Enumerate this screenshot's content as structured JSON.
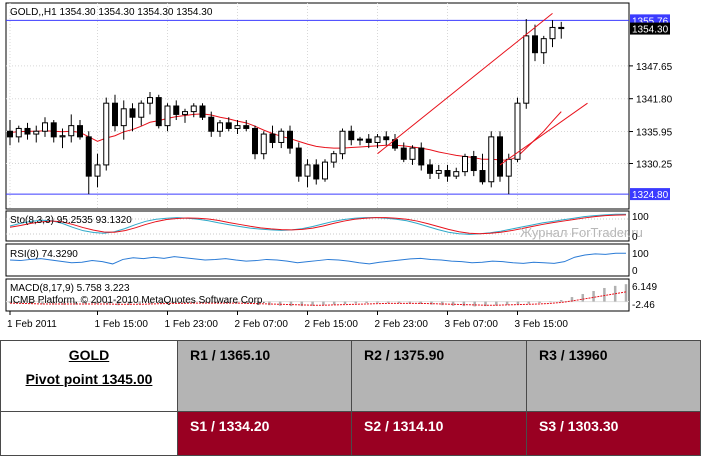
{
  "chart_data": {
    "type": "candlestick",
    "symbol_header": "GOLD,,H1  1354.30 1354.30 1354.30 1354.30",
    "ylim": [
      1322.5,
      1358.5
    ],
    "y_ticks": [
      "1347.65",
      "1341.80",
      "1335.95",
      "1330.25"
    ],
    "price_labels": {
      "upper": "1355.76",
      "last": "1354.30",
      "lower": "1324.80"
    },
    "x_ticks": [
      "1 Feb 2011",
      "1 Feb 15:00",
      "1 Feb 23:00",
      "2 Feb 07:00",
      "2 Feb 15:00",
      "2 Feb 23:00",
      "3 Feb 07:00",
      "3 Feb 15:00"
    ],
    "x_tick_index": [
      0,
      10,
      18,
      26,
      34,
      42,
      50,
      58
    ],
    "candles": [
      {
        "o": 1336.0,
        "h": 1338.0,
        "l": 1333.5,
        "c": 1335.0
      },
      {
        "o": 1335.0,
        "h": 1337.0,
        "l": 1334.0,
        "c": 1336.5
      },
      {
        "o": 1336.5,
        "h": 1337.5,
        "l": 1334.5,
        "c": 1335.5
      },
      {
        "o": 1335.5,
        "h": 1337.0,
        "l": 1334.0,
        "c": 1336.0
      },
      {
        "o": 1336.0,
        "h": 1338.5,
        "l": 1335.0,
        "c": 1337.5
      },
      {
        "o": 1337.5,
        "h": 1338.0,
        "l": 1334.0,
        "c": 1335.0
      },
      {
        "o": 1335.0,
        "h": 1336.5,
        "l": 1333.0,
        "c": 1335.2
      },
      {
        "o": 1335.2,
        "h": 1339.0,
        "l": 1334.0,
        "c": 1337.0
      },
      {
        "o": 1337.0,
        "h": 1338.0,
        "l": 1334.5,
        "c": 1335.0
      },
      {
        "o": 1335.0,
        "h": 1336.0,
        "l": 1324.8,
        "c": 1328.0
      },
      {
        "o": 1328.0,
        "h": 1332.0,
        "l": 1326.0,
        "c": 1330.0
      },
      {
        "o": 1330.0,
        "h": 1342.0,
        "l": 1329.0,
        "c": 1341.0
      },
      {
        "o": 1341.0,
        "h": 1342.5,
        "l": 1336.0,
        "c": 1337.0
      },
      {
        "o": 1337.0,
        "h": 1341.5,
        "l": 1334.5,
        "c": 1340.0
      },
      {
        "o": 1340.0,
        "h": 1341.0,
        "l": 1336.0,
        "c": 1338.5
      },
      {
        "o": 1338.5,
        "h": 1341.5,
        "l": 1337.0,
        "c": 1341.0
      },
      {
        "o": 1341.0,
        "h": 1343.0,
        "l": 1339.0,
        "c": 1342.0
      },
      {
        "o": 1342.0,
        "h": 1342.5,
        "l": 1336.5,
        "c": 1337.0
      },
      {
        "o": 1337.0,
        "h": 1341.0,
        "l": 1336.0,
        "c": 1340.5
      },
      {
        "o": 1340.5,
        "h": 1341.5,
        "l": 1338.0,
        "c": 1339.0
      },
      {
        "o": 1339.0,
        "h": 1340.0,
        "l": 1337.5,
        "c": 1339.5
      },
      {
        "o": 1339.5,
        "h": 1341.0,
        "l": 1338.5,
        "c": 1340.5
      },
      {
        "o": 1340.5,
        "h": 1341.0,
        "l": 1338.0,
        "c": 1338.5
      },
      {
        "o": 1338.5,
        "h": 1339.5,
        "l": 1335.0,
        "c": 1336.0
      },
      {
        "o": 1336.0,
        "h": 1338.0,
        "l": 1335.0,
        "c": 1337.5
      },
      {
        "o": 1337.5,
        "h": 1338.5,
        "l": 1336.0,
        "c": 1336.5
      },
      {
        "o": 1336.5,
        "h": 1338.0,
        "l": 1335.5,
        "c": 1337.0
      },
      {
        "o": 1337.0,
        "h": 1338.0,
        "l": 1336.0,
        "c": 1336.5
      },
      {
        "o": 1336.5,
        "h": 1337.0,
        "l": 1331.0,
        "c": 1332.0
      },
      {
        "o": 1332.0,
        "h": 1336.0,
        "l": 1331.0,
        "c": 1335.5
      },
      {
        "o": 1335.5,
        "h": 1337.0,
        "l": 1333.0,
        "c": 1334.0
      },
      {
        "o": 1334.0,
        "h": 1336.5,
        "l": 1333.0,
        "c": 1336.0
      },
      {
        "o": 1336.0,
        "h": 1337.0,
        "l": 1332.0,
        "c": 1333.0
      },
      {
        "o": 1333.0,
        "h": 1334.0,
        "l": 1327.0,
        "c": 1328.0
      },
      {
        "o": 1328.0,
        "h": 1331.0,
        "l": 1326.0,
        "c": 1330.0
      },
      {
        "o": 1330.0,
        "h": 1331.0,
        "l": 1326.5,
        "c": 1327.5
      },
      {
        "o": 1327.5,
        "h": 1331.0,
        "l": 1327.0,
        "c": 1330.5
      },
      {
        "o": 1330.5,
        "h": 1332.5,
        "l": 1329.5,
        "c": 1332.0
      },
      {
        "o": 1332.0,
        "h": 1336.5,
        "l": 1331.0,
        "c": 1336.0
      },
      {
        "o": 1336.0,
        "h": 1337.0,
        "l": 1333.5,
        "c": 1334.5
      },
      {
        "o": 1334.5,
        "h": 1335.0,
        "l": 1333.5,
        "c": 1334.6
      },
      {
        "o": 1334.6,
        "h": 1335.5,
        "l": 1333.0,
        "c": 1334.0
      },
      {
        "o": 1334.0,
        "h": 1335.5,
        "l": 1333.0,
        "c": 1335.0
      },
      {
        "o": 1335.0,
        "h": 1336.0,
        "l": 1333.5,
        "c": 1334.5
      },
      {
        "o": 1334.5,
        "h": 1335.5,
        "l": 1332.5,
        "c": 1333.0
      },
      {
        "o": 1333.0,
        "h": 1334.0,
        "l": 1330.5,
        "c": 1331.0
      },
      {
        "o": 1331.0,
        "h": 1333.5,
        "l": 1330.0,
        "c": 1333.0
      },
      {
        "o": 1333.0,
        "h": 1334.0,
        "l": 1329.0,
        "c": 1330.0
      },
      {
        "o": 1330.0,
        "h": 1331.0,
        "l": 1327.5,
        "c": 1328.5
      },
      {
        "o": 1328.5,
        "h": 1330.0,
        "l": 1327.5,
        "c": 1329.0
      },
      {
        "o": 1329.0,
        "h": 1330.0,
        "l": 1327.0,
        "c": 1328.0
      },
      {
        "o": 1328.0,
        "h": 1329.5,
        "l": 1327.5,
        "c": 1328.8
      },
      {
        "o": 1328.8,
        "h": 1332.0,
        "l": 1328.0,
        "c": 1331.5
      },
      {
        "o": 1331.5,
        "h": 1332.5,
        "l": 1328.0,
        "c": 1329.0
      },
      {
        "o": 1329.0,
        "h": 1332.0,
        "l": 1326.5,
        "c": 1327.0
      },
      {
        "o": 1327.0,
        "h": 1336.0,
        "l": 1326.0,
        "c": 1335.0
      },
      {
        "o": 1335.0,
        "h": 1336.0,
        "l": 1327.0,
        "c": 1328.0
      },
      {
        "o": 1328.0,
        "h": 1332.0,
        "l": 1324.8,
        "c": 1331.0
      },
      {
        "o": 1331.0,
        "h": 1342.0,
        "l": 1330.5,
        "c": 1341.0
      },
      {
        "o": 1341.0,
        "h": 1356.0,
        "l": 1340.0,
        "c": 1353.0
      },
      {
        "o": 1353.0,
        "h": 1355.0,
        "l": 1348.5,
        "c": 1350.0
      },
      {
        "o": 1350.0,
        "h": 1353.0,
        "l": 1348.0,
        "c": 1352.5
      },
      {
        "o": 1352.5,
        "h": 1355.8,
        "l": 1351.0,
        "c": 1354.5
      },
      {
        "o": 1354.5,
        "h": 1355.5,
        "l": 1352.5,
        "c": 1354.3
      }
    ],
    "ma": [
      1335.8,
      1335.9,
      1336.0,
      1336.0,
      1336.1,
      1336.0,
      1335.9,
      1336.0,
      1335.8,
      1335.0,
      1334.2,
      1334.8,
      1335.2,
      1335.9,
      1336.3,
      1336.9,
      1337.6,
      1337.9,
      1338.3,
      1338.6,
      1338.8,
      1339.0,
      1339.1,
      1338.9,
      1338.5,
      1338.2,
      1337.8,
      1337.5,
      1336.9,
      1336.2,
      1335.6,
      1335.1,
      1334.7,
      1334.2,
      1333.7,
      1333.3,
      1333.1,
      1333.0,
      1333.0,
      1333.1,
      1333.2,
      1333.3,
      1333.4,
      1333.5,
      1333.5,
      1333.4,
      1333.2,
      1333.0,
      1332.7,
      1332.3,
      1332.0,
      1331.7,
      1331.5,
      1331.3,
      1331.0,
      1331.0,
      1330.9,
      1330.8,
      1331.5,
      1333.0,
      1334.5,
      1336.0,
      1337.8,
      1339.5
    ],
    "trendline_upper": {
      "from_index": 42,
      "from": 1332.0,
      "to_index": 62,
      "to": 1357.0
    },
    "trendline_lower": {
      "from_index": 56,
      "from": 1330.0,
      "to_index": 66,
      "to": 1341.0
    },
    "sto": {
      "label": "Sto(8,3,3) 95.2535 93.1320",
      "scale": [
        "100",
        "0"
      ],
      "main": [
        50,
        60,
        68,
        72,
        70,
        60,
        45,
        32,
        25,
        22,
        28,
        40,
        55,
        68,
        76,
        80,
        82,
        80,
        76,
        70,
        62,
        55,
        48,
        42,
        38,
        35,
        33,
        35,
        40,
        48,
        58,
        68,
        75,
        80,
        82,
        82,
        80,
        76,
        70,
        60,
        48,
        36,
        26,
        20,
        18,
        20,
        24,
        30,
        38,
        46,
        54,
        62,
        68,
        74,
        80,
        86,
        90,
        93,
        95,
        95
      ],
      "signal": [
        45,
        52,
        60,
        66,
        69,
        66,
        56,
        44,
        34,
        27,
        26,
        32,
        43,
        56,
        67,
        75,
        79,
        81,
        80,
        77,
        71,
        63,
        56,
        49,
        43,
        39,
        36,
        35,
        37,
        42,
        50,
        60,
        69,
        76,
        80,
        82,
        82,
        80,
        76,
        69,
        59,
        48,
        37,
        28,
        22,
        20,
        22,
        26,
        32,
        40,
        48,
        56,
        63,
        69,
        75,
        81,
        86,
        90,
        92,
        93
      ]
    },
    "rsi": {
      "label": "RSI(8) 74.3290",
      "scale": [
        "100",
        "0"
      ],
      "values": [
        50,
        48,
        52,
        55,
        50,
        45,
        40,
        42,
        48,
        44,
        36,
        52,
        58,
        55,
        60,
        56,
        62,
        58,
        54,
        50,
        52,
        55,
        50,
        46,
        48,
        52,
        50,
        46,
        40,
        44,
        48,
        52,
        50,
        46,
        40,
        36,
        42,
        46,
        50,
        54,
        56,
        52,
        50,
        46,
        44,
        40,
        42,
        46,
        44,
        40,
        38,
        42,
        40,
        38,
        44,
        60,
        68,
        72,
        70,
        74,
        74
      ]
    },
    "macd": {
      "label": "MACD(8,17,9) 5.758 3.223",
      "scale": [
        "6.149",
        "-2.46"
      ],
      "hist": [
        -0.5,
        -0.6,
        -0.8,
        -0.9,
        -1.0,
        -1.1,
        -1.0,
        -0.9,
        -0.8,
        -1.0,
        -1.2,
        -1.1,
        -0.9,
        -0.7,
        -0.6,
        -0.5,
        -0.4,
        -0.3,
        -0.3,
        -0.4,
        -0.5,
        -0.6,
        -0.8,
        -1.0,
        -1.2,
        -1.4,
        -1.5,
        -1.5,
        -1.4,
        -1.2,
        -1.0,
        -0.8,
        -0.6,
        -0.5,
        -0.4,
        -0.4,
        -0.5,
        -0.6,
        -0.8,
        -1.0,
        -1.2,
        -1.4,
        -1.5,
        -1.6,
        -1.5,
        -1.3,
        -1.1,
        -0.9,
        -0.7,
        -0.5,
        -0.2,
        0.5,
        1.5,
        2.5,
        3.5,
        4.5,
        5.2,
        5.758
      ],
      "signal": [
        -0.5,
        -0.6,
        -0.7,
        -0.8,
        -0.8,
        -0.8,
        -0.8,
        -0.8,
        -0.8,
        -0.8,
        -0.9,
        -0.9,
        -0.9,
        -0.8,
        -0.7,
        -0.6,
        -0.6,
        -0.5,
        -0.5,
        -0.5,
        -0.5,
        -0.5,
        -0.6,
        -0.7,
        -0.8,
        -0.9,
        -1.0,
        -1.1,
        -1.2,
        -1.2,
        -1.1,
        -1.0,
        -0.9,
        -0.8,
        -0.7,
        -0.6,
        -0.6,
        -0.6,
        -0.6,
        -0.7,
        -0.8,
        -0.9,
        -1.0,
        -1.1,
        -1.2,
        -1.2,
        -1.1,
        -1.0,
        -0.9,
        -0.8,
        -0.6,
        -0.3,
        0.2,
        0.8,
        1.4,
        2.0,
        2.6,
        3.223
      ]
    },
    "copyright": "ICMB Platform, © 2001-2010 MetaQuotes Software Corp.",
    "watermark": "Журнал ForTrader.ru",
    "colors": {
      "up_candle": "#ffffff",
      "down_candle": "#000000",
      "ma": "#e8111b",
      "trendline": "#e8111b",
      "level_line": "#3b3bff",
      "sto_main": "#2fa9c9",
      "sto_signal": "#e8111b",
      "rsi": "#2a7bd6",
      "macd_hist": "#b0b0b0",
      "macd_signal": "#e8111b",
      "price_label_bg": "#3b3bff",
      "last_label_bg": "#000000"
    }
  },
  "table": {
    "title": "GOLD",
    "pivot": "Pivot point 1345.00",
    "r1": "R1 / 1365.10",
    "r2": "R2 / 1375.90",
    "r3": "R3 / 13960",
    "s1": "S1 / 1334.20",
    "s2": "S2 / 1314.10",
    "s3": "S3 / 1303.30",
    "colors": {
      "resistance_bg": "#b4b4b4",
      "support_bg": "#990022"
    }
  }
}
